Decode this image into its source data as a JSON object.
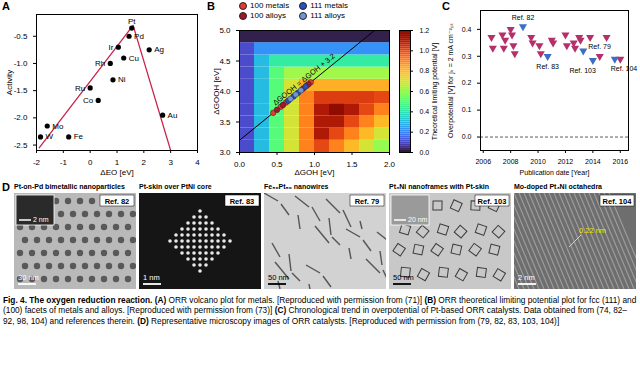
{
  "chart_data": [
    {
      "panel": "A",
      "type": "scatter",
      "x_label": "ΔEO [eV]",
      "y_label": "Activity",
      "xlim": [
        -2,
        4
      ],
      "xticks": [
        -2,
        -1,
        0,
        1,
        2,
        3,
        4
      ],
      "ylim": [
        -2.6,
        -0.1
      ],
      "yticks": [
        {
          "value": -2.5,
          "label": "-2.5"
        },
        {
          "value": -2,
          "label": "-2.0"
        },
        {
          "value": -1.5,
          "label": "-1.5"
        },
        {
          "value": -1,
          "label": "-1.0"
        },
        {
          "value": -0.5,
          "label": "-0.5"
        }
      ],
      "series": [
        {
          "color": "#000000",
          "marker": "circle",
          "x": [
            1.55,
            1.45,
            2.2,
            1.05,
            1.25,
            0.75,
            0.85,
            0.3,
            0.0,
            -1.6,
            -1.85,
            -0.8,
            2.7
          ],
          "y": [
            -0.35,
            -0.5,
            -0.75,
            -0.7,
            -0.9,
            -1.0,
            -1.3,
            -1.68,
            -1.45,
            -2.15,
            -2.35,
            -2.35,
            -1.95
          ],
          "labels": [
            "Pt",
            "Pd",
            "Ag",
            "Ir",
            "Cu",
            "Rh",
            "Ni",
            "Co",
            "Ru",
            "Mo",
            "W",
            "Fe",
            "Au"
          ]
        }
      ],
      "line": {
        "color": "#c9234a",
        "x": [
          -1.9,
          1.6,
          3.0
        ],
        "y": [
          -2.55,
          -0.3,
          -2.6
        ]
      }
    },
    {
      "panel": "B",
      "type": "heatmap",
      "x_label": "ΔGOH [eV]",
      "y_label": "ΔGOOH [eV]",
      "xlim": [
        0,
        2
      ],
      "xticks": [
        {
          "value": 0,
          "label": "0.0"
        },
        {
          "value": 0.5,
          "label": "0.5"
        },
        {
          "value": 1,
          "label": "1.0"
        },
        {
          "value": 1.5,
          "label": "1.5"
        },
        {
          "value": 2,
          "label": "2.0"
        }
      ],
      "ylim": [
        3,
        5
      ],
      "yticks": [
        {
          "value": 3,
          "label": "3.0"
        },
        {
          "value": 3.5,
          "label": "3.5"
        },
        {
          "value": 4,
          "label": "4.0"
        },
        {
          "value": 4.5,
          "label": "4.5"
        },
        {
          "value": 5,
          "label": "5.0"
        }
      ],
      "cells": {
        "x": [
          0.1,
          0.3,
          0.5,
          0.7,
          0.9,
          1.1,
          1.3,
          1.5,
          1.7,
          1.9
        ],
        "y": [
          3.1,
          3.3,
          3.5,
          3.7,
          3.9,
          4.1,
          4.3,
          4.5,
          4.7,
          4.9
        ],
        "values": [
          [
            0.1,
            0.3,
            0.5,
            0.7,
            0.9,
            1.0,
            0.9,
            0.8,
            0.7,
            0.6
          ],
          [
            0.1,
            0.3,
            0.5,
            0.7,
            0.9,
            1.1,
            1.0,
            0.9,
            0.8,
            0.7
          ],
          [
            0.1,
            0.3,
            0.5,
            0.7,
            0.9,
            1.1,
            1.1,
            1.0,
            0.9,
            0.8
          ],
          [
            0.1,
            0.3,
            0.5,
            0.7,
            0.9,
            1.1,
            1.2,
            1.1,
            1.0,
            0.9
          ],
          [
            0.1,
            0.3,
            0.5,
            0.7,
            0.9,
            1.02,
            1.02,
            1.02,
            1.02,
            1.0
          ],
          [
            0.1,
            0.3,
            0.5,
            0.7,
            0.82,
            0.82,
            0.82,
            0.82,
            0.82,
            0.82
          ],
          [
            0.1,
            0.3,
            0.5,
            0.62,
            0.62,
            0.62,
            0.62,
            0.62,
            0.62,
            0.62
          ],
          [
            0.1,
            0.3,
            0.42,
            0.42,
            0.42,
            0.42,
            0.42,
            0.42,
            0.42,
            0.42
          ],
          [
            0.1,
            0.22,
            0.22,
            0.22,
            0.22,
            0.22,
            0.22,
            0.22,
            0.22,
            0.22
          ],
          [
            0.02,
            0.02,
            0.02,
            0.02,
            0.02,
            0.02,
            0.02,
            0.02,
            0.02,
            0.02
          ]
        ]
      },
      "colorbar": {
        "label": "Theoretical limiting potential [V]",
        "range": [
          0,
          1.2
        ],
        "ticks": [
          {
            "value": 0,
            "label": "0.0"
          },
          {
            "value": 0.2,
            "label": "0.2"
          },
          {
            "value": 0.4,
            "label": "0.4"
          },
          {
            "value": 0.6,
            "label": "0.6"
          },
          {
            "value": 0.8,
            "label": "0.8"
          },
          {
            "value": 1.0,
            "label": "1.0"
          },
          {
            "value": 1.2,
            "label": "1.2"
          }
        ]
      },
      "legend": "top-left",
      "series": [
        {
          "name": "100 metals",
          "color": "#e53935",
          "marker": "circle",
          "x": [
            0.45,
            0.55,
            0.62,
            0.9,
            0.95
          ],
          "y": [
            3.65,
            3.75,
            3.82,
            4.1,
            4.15
          ]
        },
        {
          "name": "100 alloys",
          "color": "#a3162a",
          "marker": "circle",
          "x": [
            0.5,
            0.58,
            0.85,
            0.92
          ],
          "y": [
            3.7,
            3.78,
            4.05,
            4.12
          ]
        },
        {
          "name": "111 metals",
          "color": "#2a4fc4",
          "marker": "circle",
          "x": [
            0.65,
            0.72,
            0.78,
            0.88
          ],
          "y": [
            3.85,
            3.92,
            3.98,
            4.08
          ]
        },
        {
          "name": "111 alloys",
          "color": "#6f97d8",
          "marker": "circle",
          "x": [
            0.68,
            0.75,
            0.82
          ],
          "y": [
            3.88,
            3.95,
            4.02
          ]
        }
      ],
      "scaling_line": {
        "x": [
          0,
          1.8
        ],
        "y": [
          3.2,
          5.0
        ],
        "label": "ΔGOOH = ΔGOH + 3.2",
        "color": "#000000"
      }
    },
    {
      "panel": "C",
      "type": "scatter",
      "x_label": "Publication date [Year]",
      "y_label": "Overpotential [V] for jₖ = 2 mA cm⁻²ₚₜ",
      "xlim": [
        2005.8,
        2016.6
      ],
      "xticks": [
        2006,
        2008,
        2010,
        2012,
        2014,
        2016
      ],
      "ylim": [
        -0.05,
        0.47
      ],
      "yticks": [
        {
          "value": 0,
          "label": "0.0"
        },
        {
          "value": 0.1,
          "label": "0.1"
        },
        {
          "value": 0.2,
          "label": "0.2"
        },
        {
          "value": 0.3,
          "label": "0.3"
        },
        {
          "value": 0.4,
          "label": "0.4"
        }
      ],
      "reference_line": {
        "y": 0,
        "line_style": "dashed"
      },
      "series": [
        {
          "color": "#b5306b",
          "marker": "triangle-down",
          "x": [
            2006.6,
            2006.7,
            2007.4,
            2007.5,
            2007.6,
            2008.0,
            2008.1,
            2008.2,
            2008.3,
            2009.5,
            2009.6,
            2010.1,
            2010.2,
            2011.0,
            2011.1,
            2012.0,
            2012.1,
            2012.6,
            2012.7,
            2013.0,
            2013.1,
            2013.8,
            2014.5,
            2015.0,
            2016.0
          ],
          "y": [
            0.37,
            0.33,
            0.38,
            0.33,
            0.36,
            0.4,
            0.38,
            0.34,
            0.31,
            0.37,
            0.35,
            0.34,
            0.31,
            0.36,
            0.35,
            0.38,
            0.34,
            0.35,
            0.33,
            0.37,
            0.36,
            0.37,
            0.3,
            0.37,
            0.29
          ]
        },
        {
          "color": "#3a6fc4",
          "marker": "triangle-down",
          "x": [
            2008.9,
            2010.7,
            2013.3,
            2014.0,
            2015.6
          ],
          "y": [
            0.41,
            0.3,
            0.32,
            0.285,
            0.29
          ],
          "labels": [
            "Ref. 82",
            "Ref. 83",
            "Ref. 79",
            "Ref. 103",
            "Ref. 104"
          ]
        }
      ]
    }
  ],
  "panel_d": {
    "panel": "D",
    "images": [
      {
        "title": "Pt-on-Pd bimetallic nanoparticles",
        "ref": "Ref. 82",
        "scale_bars": [
          "2 nm",
          "30 nm"
        ]
      },
      {
        "title": "Pt-skin over PtNi core",
        "ref": "Ref. 83",
        "scale_bars": [
          "1 nm"
        ]
      },
      {
        "title": "Fe₅₀Pt₅₀ nanowires",
        "ref": "Ref. 79",
        "scale_bars": [
          "50 nm"
        ]
      },
      {
        "title": "Pt₃Ni nanoframes with Pt-skin",
        "ref": "Ref. 103",
        "scale_bars": [
          "20 nm",
          "50 nm"
        ]
      },
      {
        "title": "Mo-doped Pt₃Ni octahedra",
        "ref": "Ref. 104",
        "scale_bars": [
          "2 nm"
        ],
        "annotation": "0.22 nm"
      }
    ]
  },
  "caption": {
    "label": "Fig. 4.",
    "title": "The oxygen reduction reaction.",
    "text": "(A) ORR volcano plot for metals. [Reproduced with permission from (71)] (B) ORR theoretical limiting potential plot for fcc (111) and (100) facets of metals and alloys. [Reproduced with permission from (73)] (C) Chronological trend in overpotential of Pt-based ORR catalysts. Data obtained from (74, 82–92, 98, 104) and references therein. (D) Representative microscopy images of ORR catalysts. [Reproduced with permission from (79, 82, 83, 103, 104)]"
  }
}
